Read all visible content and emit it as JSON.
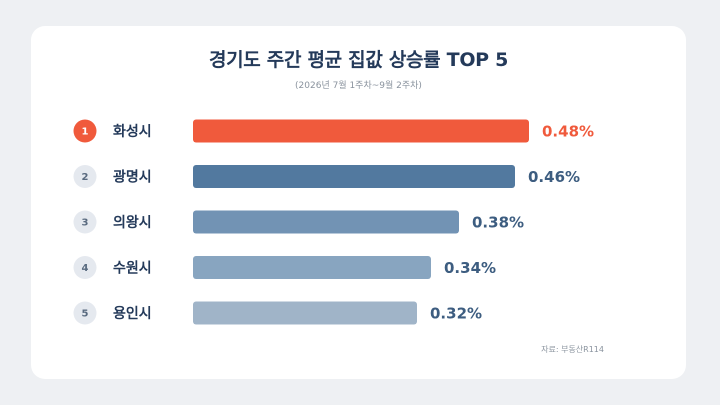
{
  "title": "경기도 주간 평균 집값 상승률 TOP 5",
  "subtitle": "(2026년 7월 1주차~9월 2주차)",
  "source": "자료: 부동산R114",
  "colors": {
    "highlight": "#f05a3c",
    "bars": [
      "#f05a3c",
      "#52799f",
      "#7293b4",
      "#88a5c0",
      "#a0b4c8"
    ],
    "value_text_highlight": "#f05a3c",
    "value_text": "#3d5d80",
    "rank_badge_bg": "#e5e9ef",
    "rank_badge_text": "#5a6b80",
    "label_text": "#243a5a"
  },
  "chart_data": {
    "type": "bar",
    "orientation": "horizontal",
    "categories": [
      "화성시",
      "광명시",
      "의왕시",
      "수원시",
      "용인시"
    ],
    "ranks": [
      "1",
      "2",
      "3",
      "4",
      "5"
    ],
    "values": [
      0.48,
      0.46,
      0.38,
      0.34,
      0.32
    ],
    "value_labels": [
      "0.48%",
      "0.46%",
      "0.38%",
      "0.34%",
      "0.32%"
    ],
    "title": "경기도 주간 평균 집값 상승률 TOP 5",
    "xlabel": "",
    "ylabel": "",
    "grid": false,
    "legend": "none"
  }
}
